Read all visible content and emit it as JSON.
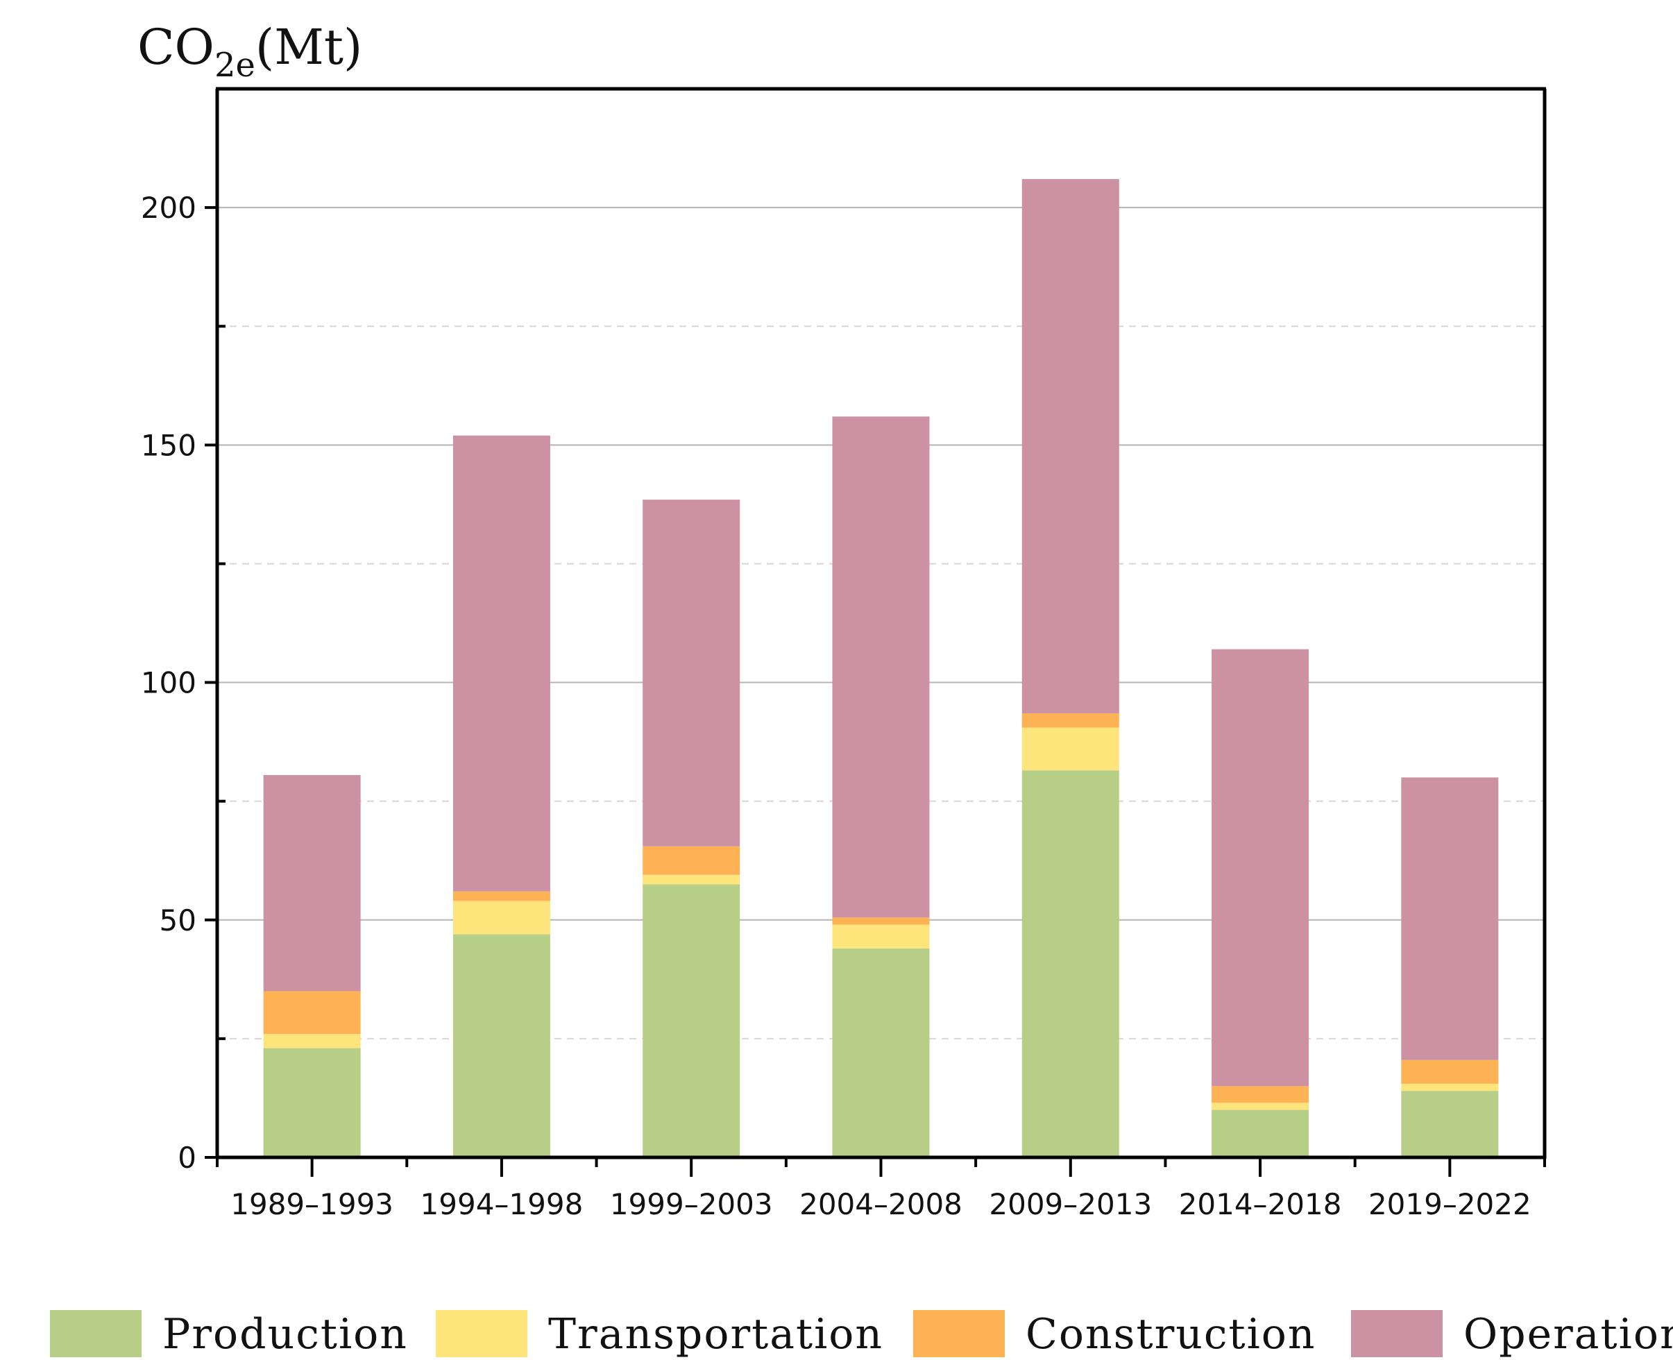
{
  "chart_data": {
    "type": "bar",
    "stacked": true,
    "title": "",
    "xlabel": "",
    "ylabel": {
      "base": "CO",
      "sub": "2e",
      "unit": "(Mt)"
    },
    "ylim": [
      0,
      225
    ],
    "yticks": [
      0,
      50,
      100,
      150,
      200
    ],
    "grid": true,
    "legend_position": "bottom",
    "categories": [
      "1989–1993",
      "1994–1998",
      "1999–2003",
      "2004–2008",
      "2009–2013",
      "2014–2018",
      "2019–2022"
    ],
    "series": [
      {
        "name": "Production",
        "color": "#b7ce86",
        "values": [
          23,
          47,
          57.5,
          44,
          81.5,
          10,
          14
        ]
      },
      {
        "name": "Transportation",
        "color": "#fde57c",
        "values": [
          3,
          7,
          2,
          5,
          9,
          1.5,
          1.5
        ]
      },
      {
        "name": "Construction",
        "color": "#fdb254",
        "values": [
          9,
          2,
          6,
          1.5,
          3,
          3.5,
          5
        ]
      },
      {
        "name": "Operation",
        "color": "#cd91a4",
        "values": [
          45.5,
          96,
          73,
          105.5,
          112.5,
          92,
          59.5
        ]
      }
    ]
  }
}
